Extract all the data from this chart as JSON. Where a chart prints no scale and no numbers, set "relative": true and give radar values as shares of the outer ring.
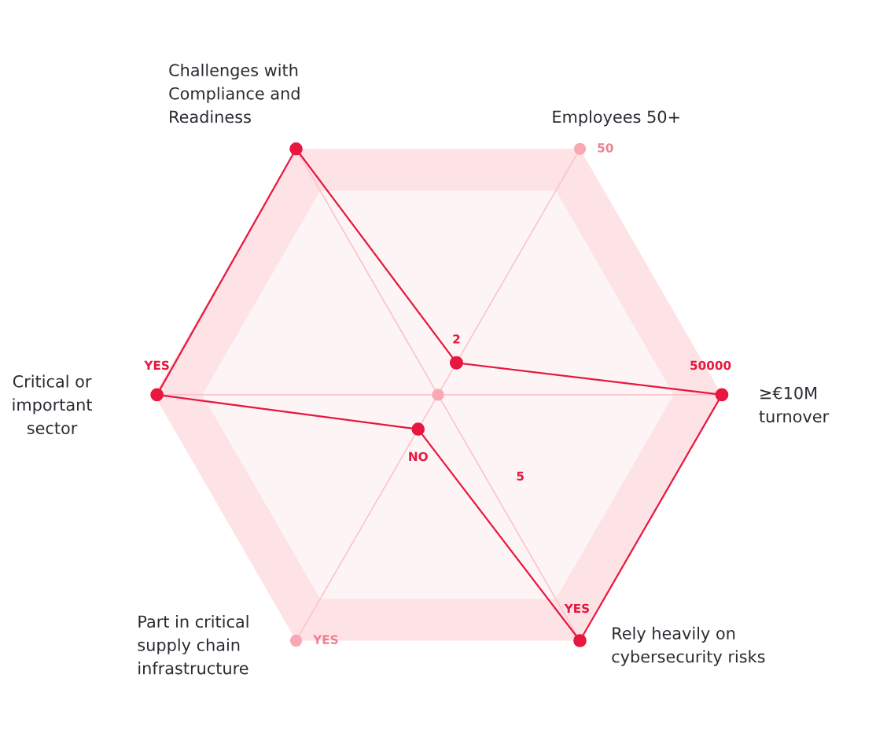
{
  "chart_data": {
    "type": "radar",
    "relative": true,
    "grid": true,
    "marker": "circle",
    "line_style": "solid",
    "legend": false,
    "categories": [
      "Employees 50+",
      "≥€10M\nturnover",
      "Rely heavily on\ncybersecurity risks",
      "Part in critical\nsupply chain\ninfrastructure",
      "Critical or\nimportant\nsector",
      "Challenges with\nCompliance and\nReadiness"
    ],
    "series": [
      {
        "color": "#e8173f",
        "values": [
          0.13,
          1.0,
          1.0,
          0.14,
          0.99,
          1.0
        ]
      }
    ],
    "annotations": [
      "2",
      "50",
      "50000",
      "YES",
      "NO",
      "YES",
      "YES",
      "5"
    ]
  }
}
